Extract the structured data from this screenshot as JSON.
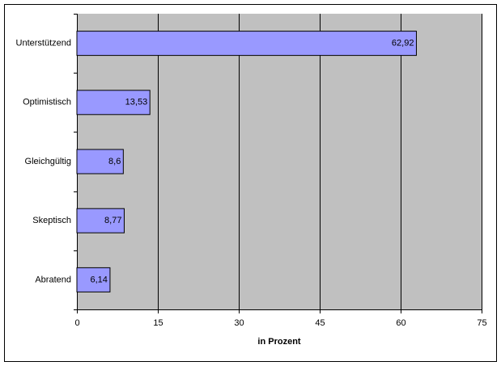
{
  "chart_data": {
    "type": "hbar",
    "x_label": "in Prozent",
    "categories": [
      "Unterstützend",
      "Optimistisch",
      "Gleichgültig",
      "Skeptisch",
      "Abratend"
    ],
    "values": [
      62.92,
      13.53,
      8.6,
      8.77,
      6.14
    ],
    "value_labels": [
      "62,92",
      "13,53",
      "8,6",
      "8,77",
      "6,14"
    ],
    "color": "#9999ff",
    "plot_background": "#c0c0c0",
    "xlim": [
      0,
      75
    ],
    "xticks": [
      0,
      15,
      30,
      45,
      60,
      75
    ],
    "grid": true
  }
}
